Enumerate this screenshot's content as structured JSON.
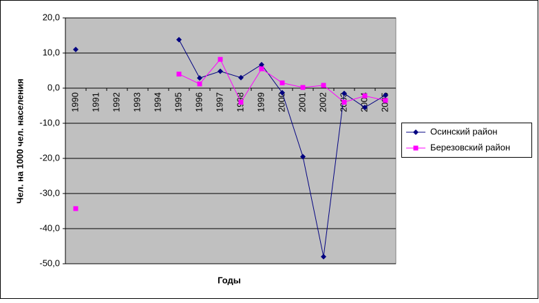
{
  "chart_data": {
    "type": "line",
    "y_label": "Чел. на 1000 чел. населения",
    "x_label": "Годы",
    "categories": [
      "1990",
      "1991",
      "1992",
      "1993",
      "1994",
      "1995",
      "1996",
      "1997",
      "1998",
      "1999",
      "2000",
      "2001",
      "2002",
      "2003",
      "2004",
      "2005"
    ],
    "series": [
      {
        "name": "Осинский район",
        "color": "#000080",
        "marker": "diamond",
        "values": [
          11.0,
          null,
          null,
          null,
          null,
          13.8,
          2.9,
          4.8,
          3.0,
          6.7,
          -1.3,
          -19.5,
          -48.0,
          -1.5,
          -5.5,
          -2.0
        ]
      },
      {
        "name": "Березовский район",
        "color": "#ff00ff",
        "marker": "square",
        "values": [
          -34.3,
          null,
          null,
          null,
          null,
          4.0,
          1.2,
          8.2,
          -4.0,
          5.5,
          1.5,
          0.2,
          0.8,
          -4.0,
          -2.2,
          -3.5
        ]
      }
    ],
    "ylim": [
      -50,
      20
    ],
    "yticks": [
      {
        "value": -50,
        "label": "-50,0"
      },
      {
        "value": -40,
        "label": "-40,0"
      },
      {
        "value": -30,
        "label": "-30,0"
      },
      {
        "value": -20,
        "label": "-20,0"
      },
      {
        "value": -10,
        "label": "-10,0"
      },
      {
        "value": 0,
        "label": "0,0"
      },
      {
        "value": 10,
        "label": "10,0"
      },
      {
        "value": 20,
        "label": "20,0"
      }
    ],
    "grid": true,
    "legend": "right"
  }
}
